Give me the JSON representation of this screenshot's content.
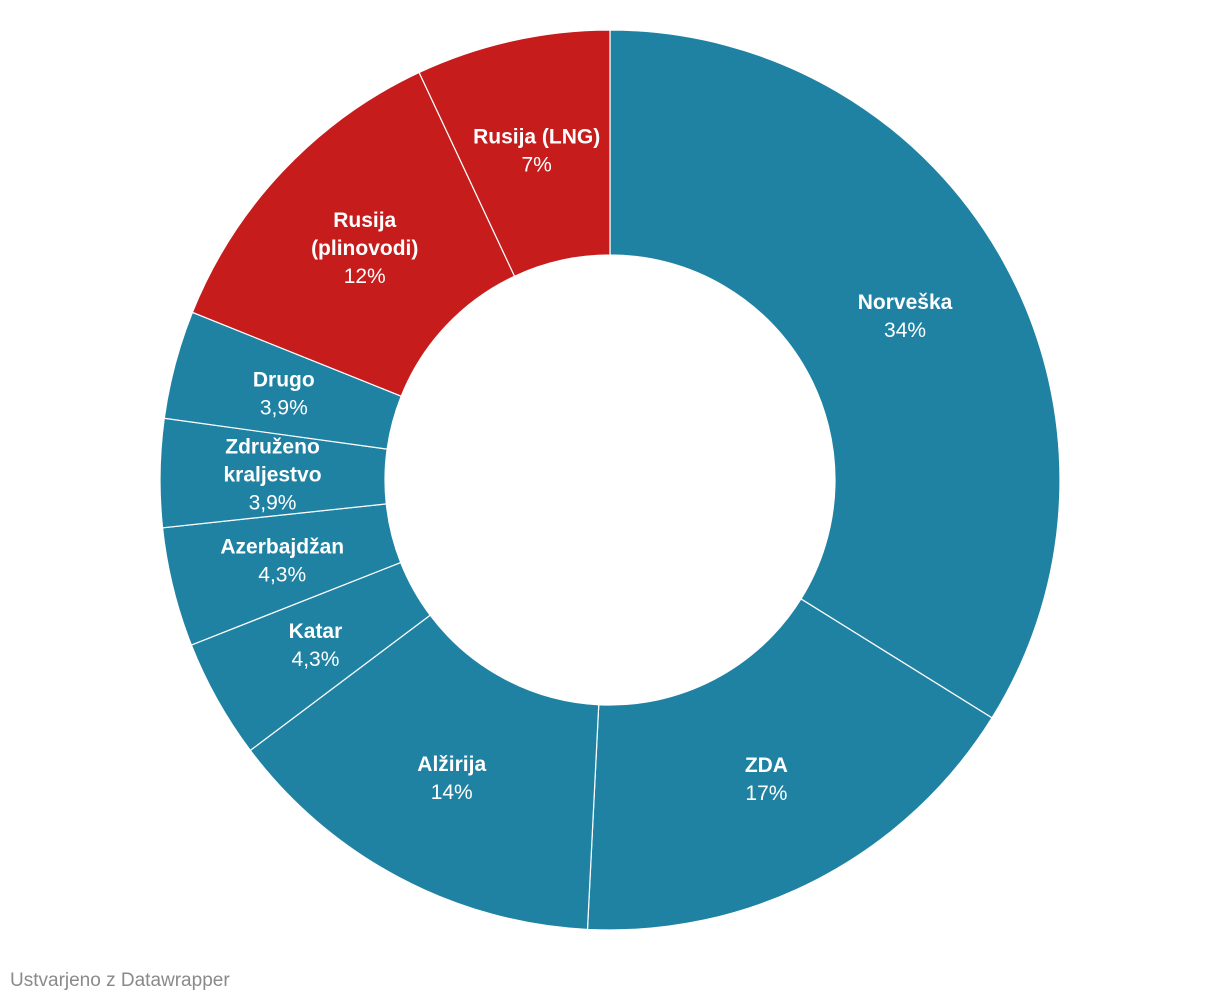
{
  "chart_data": {
    "type": "pie",
    "style": "donut",
    "slices": [
      {
        "label_lines": [
          "Norveška"
        ],
        "value": 34,
        "value_label": "34%",
        "color": "#1f82a3"
      },
      {
        "label_lines": [
          "ZDA"
        ],
        "value": 17,
        "value_label": "17%",
        "color": "#1f82a3"
      },
      {
        "label_lines": [
          "Alžirija"
        ],
        "value": 14,
        "value_label": "14%",
        "color": "#1f82a3"
      },
      {
        "label_lines": [
          "Katar"
        ],
        "value": 4.3,
        "value_label": "4,3%",
        "color": "#1f82a3"
      },
      {
        "label_lines": [
          "Azerbajdžan"
        ],
        "value": 4.3,
        "value_label": "4,3%",
        "color": "#1f82a3"
      },
      {
        "label_lines": [
          "Združeno",
          "kraljestvo"
        ],
        "value": 3.9,
        "value_label": "3,9%",
        "color": "#1f82a3"
      },
      {
        "label_lines": [
          "Drugo"
        ],
        "value": 3.9,
        "value_label": "3,9%",
        "color": "#1f82a3"
      },
      {
        "label_lines": [
          "Rusija",
          "(plinovodi)"
        ],
        "value": 12,
        "value_label": "12%",
        "color": "#c71c1c"
      },
      {
        "label_lines": [
          "Rusija (LNG)"
        ],
        "value": 7,
        "value_label": "7%",
        "color": "#c71c1c"
      }
    ]
  },
  "footer": {
    "credit": "Ustvarjeno z Datawrapper"
  }
}
